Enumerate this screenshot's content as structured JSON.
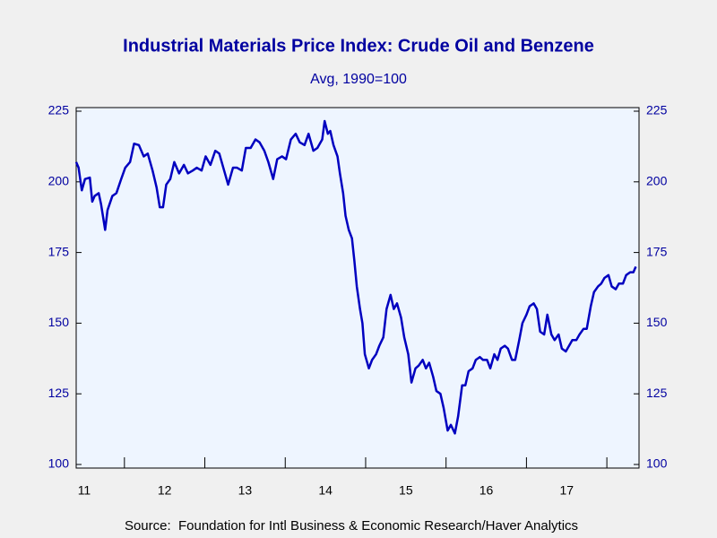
{
  "chart_data": {
    "type": "line",
    "title": "Industrial Materials Price Index: Crude Oil and Benzene",
    "subtitle": "Avg, 1990=100",
    "source": "Source:  Foundation for Intl Business & Economic Research/Haver Analytics",
    "x": [
      2011.4,
      2011.43,
      2011.47,
      2011.51,
      2011.57,
      2011.6,
      2011.63,
      2011.68,
      2011.71,
      2011.76,
      2011.79,
      2011.85,
      2011.9,
      2011.96,
      2012.01,
      2012.07,
      2012.12,
      2012.18,
      2012.24,
      2012.29,
      2012.35,
      2012.4,
      2012.44,
      2012.48,
      2012.52,
      2012.57,
      2012.62,
      2012.68,
      2012.74,
      2012.79,
      2012.85,
      2012.9,
      2012.96,
      2013.01,
      2013.07,
      2013.13,
      2013.18,
      2013.24,
      2013.29,
      2013.35,
      2013.4,
      2013.46,
      2013.51,
      2013.57,
      2013.63,
      2013.68,
      2013.74,
      2013.79,
      2013.85,
      2013.9,
      2013.96,
      2014.01,
      2014.07,
      2014.13,
      2014.18,
      2014.24,
      2014.29,
      2014.35,
      2014.4,
      2014.46,
      2014.49,
      2014.53,
      2014.56,
      2014.6,
      2014.65,
      2014.68,
      2014.72,
      2014.75,
      2014.79,
      2014.83,
      2014.86,
      2014.89,
      2014.93,
      2014.96,
      2014.99,
      2015.04,
      2015.08,
      2015.13,
      2015.17,
      2015.22,
      2015.26,
      2015.31,
      2015.35,
      2015.39,
      2015.44,
      2015.48,
      2015.53,
      2015.57,
      2015.62,
      2015.66,
      2015.71,
      2015.75,
      2015.79,
      2015.84,
      2015.88,
      2015.93,
      2015.97,
      2016.02,
      2016.06,
      2016.11,
      2016.15,
      2016.2,
      2016.24,
      2016.28,
      2016.33,
      2016.37,
      2016.42,
      2016.46,
      2016.51,
      2016.55,
      2016.6,
      2016.64,
      2016.68,
      2016.73,
      2016.77,
      2016.82,
      2016.86,
      2016.91,
      2016.95,
      2017.0,
      2017.04,
      2017.09,
      2017.13,
      2017.17,
      2017.22,
      2017.26,
      2017.31,
      2017.35,
      2017.4,
      2017.44,
      2017.49,
      2017.53,
      2017.57,
      2017.62,
      2017.66,
      2017.71,
      2017.75,
      2017.8,
      2017.84,
      2017.89,
      2017.93,
      2017.97,
      2018.02,
      2018.06,
      2018.11,
      2018.15,
      2018.2,
      2018.24,
      2018.29,
      2018.33,
      2018.36
    ],
    "series": [
      {
        "color": "#0000c0",
        "values": [
          207,
          205,
          197,
          201,
          201.5,
          193,
          195,
          196,
          192,
          183,
          190,
          195,
          196,
          201,
          205,
          207,
          213.5,
          213,
          209,
          210,
          204,
          198,
          191,
          191,
          199,
          201,
          207,
          203,
          206,
          203,
          204,
          205,
          204,
          209,
          206,
          211,
          210,
          204,
          199,
          205,
          205,
          204,
          212,
          212,
          215,
          214,
          211,
          207,
          201,
          208,
          209,
          208,
          215,
          217,
          214,
          213,
          217,
          211,
          212,
          215,
          221.5,
          217,
          218,
          213,
          209,
          203,
          196,
          188,
          183,
          180,
          172,
          163,
          155,
          150,
          139,
          134,
          137,
          139,
          142,
          145,
          155,
          160,
          155,
          157,
          152,
          145,
          139,
          129,
          134,
          135,
          137,
          134,
          136,
          131,
          126,
          125,
          120,
          112,
          114,
          111,
          117,
          128,
          128,
          133,
          134,
          137,
          138,
          137,
          137,
          134,
          139,
          137,
          141,
          142,
          141,
          137,
          137,
          144,
          150,
          153,
          156,
          157,
          155,
          147,
          146,
          153,
          146,
          144,
          146,
          141,
          140,
          142,
          144,
          144,
          146,
          148,
          148,
          156,
          161,
          163,
          164,
          166,
          167,
          163,
          162,
          164,
          164,
          167,
          168,
          168,
          170
        ]
      }
    ],
    "xlim": [
      2011.4,
      2018.4
    ],
    "xticks": [
      {
        "value": 2011.5,
        "label": "11"
      },
      {
        "value": 2012.5,
        "label": "12"
      },
      {
        "value": 2013.5,
        "label": "13"
      },
      {
        "value": 2014.5,
        "label": "14"
      },
      {
        "value": 2015.5,
        "label": "15"
      },
      {
        "value": 2016.5,
        "label": "16"
      },
      {
        "value": 2017.5,
        "label": "17"
      }
    ],
    "ylim": [
      100,
      225
    ],
    "yticks": [
      100,
      125,
      150,
      175,
      200,
      225
    ]
  }
}
